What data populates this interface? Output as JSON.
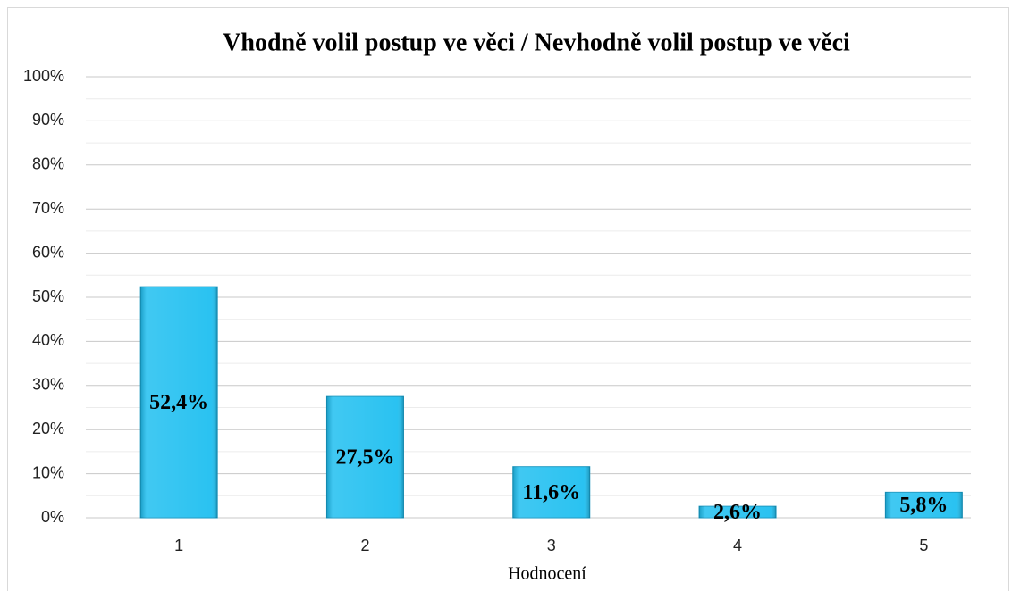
{
  "chart_data": {
    "type": "bar",
    "title": "Vhodně volil postup ve věci / Nevhodně volil postup ve věci",
    "x_label": "Hodnocení",
    "categories": [
      "1",
      "2",
      "3",
      "4",
      "5"
    ],
    "values": [
      52.4,
      27.5,
      11.6,
      2.6,
      5.8
    ],
    "value_labels": [
      "52,4%",
      "27,5%",
      "11,6%",
      "2,6%",
      "5,8%"
    ],
    "color": "#1fbff0",
    "ylim": [
      0,
      100
    ],
    "yticks": [
      {
        "value": 0,
        "label": "0%"
      },
      {
        "value": 10,
        "label": "10%"
      },
      {
        "value": 20,
        "label": "20%"
      },
      {
        "value": 30,
        "label": "30%"
      },
      {
        "value": 40,
        "label": "40%"
      },
      {
        "value": 50,
        "label": "50%"
      },
      {
        "value": 60,
        "label": "60%"
      },
      {
        "value": 70,
        "label": "70%"
      },
      {
        "value": 80,
        "label": "80%"
      },
      {
        "value": 90,
        "label": "90%"
      },
      {
        "value": 100,
        "label": "100%"
      }
    ],
    "minor_yticks": [
      5,
      15,
      25,
      35,
      45,
      55,
      65,
      75,
      85,
      95
    ],
    "grid": true
  }
}
